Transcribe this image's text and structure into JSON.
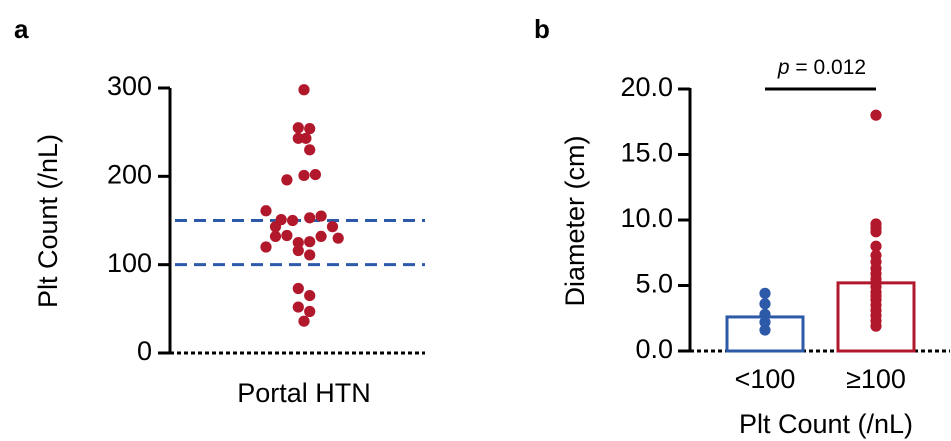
{
  "colors": {
    "red": "#b2182b",
    "blue": "#2d5aa8",
    "axis": "#000000"
  },
  "chart_data": [
    {
      "panel": "a",
      "type": "scatter",
      "xlabel": "Portal HTN",
      "ylabel": "Plt Count (/nL)",
      "ylim": [
        0,
        300
      ],
      "yticks": [
        0,
        100,
        200,
        300
      ],
      "reference_lines": [
        100,
        150
      ],
      "points": [
        {
          "x": 0,
          "y": 298
        },
        {
          "x": -0.6,
          "y": 255
        },
        {
          "x": 0.6,
          "y": 254
        },
        {
          "x": -0.6,
          "y": 243
        },
        {
          "x": 0.2,
          "y": 243
        },
        {
          "x": 0.6,
          "y": 230
        },
        {
          "x": -1.8,
          "y": 196
        },
        {
          "x": 0,
          "y": 201
        },
        {
          "x": 1.2,
          "y": 202
        },
        {
          "x": -4.0,
          "y": 161
        },
        {
          "x": -2.4,
          "y": 151
        },
        {
          "x": -1.2,
          "y": 150
        },
        {
          "x": 0.6,
          "y": 153
        },
        {
          "x": 1.8,
          "y": 155
        },
        {
          "x": -3.0,
          "y": 143
        },
        {
          "x": 3.0,
          "y": 143
        },
        {
          "x": -1.8,
          "y": 133
        },
        {
          "x": 1.8,
          "y": 132
        },
        {
          "x": -3.0,
          "y": 132
        },
        {
          "x": 3.6,
          "y": 130
        },
        {
          "x": -4.0,
          "y": 120
        },
        {
          "x": -0.6,
          "y": 125
        },
        {
          "x": 0.6,
          "y": 126
        },
        {
          "x": -0.6,
          "y": 116
        },
        {
          "x": 0.6,
          "y": 111
        },
        {
          "x": -0.6,
          "y": 73
        },
        {
          "x": 0.6,
          "y": 65
        },
        {
          "x": -0.6,
          "y": 52
        },
        {
          "x": 0.6,
          "y": 47
        },
        {
          "x": 0,
          "y": 36
        }
      ]
    },
    {
      "panel": "b",
      "type": "bar",
      "categories": [
        "<100",
        "≥100"
      ],
      "values": [
        2.6,
        5.2
      ],
      "xlabel": "Plt Count (/nL)",
      "ylabel": "Diameter (cm)",
      "ylim": [
        0,
        20
      ],
      "ytick_labels": [
        "0.0",
        "5.0",
        "10.0",
        "15.0",
        "20.0"
      ],
      "annotation": {
        "prefix": "p",
        "text": " = 0.012"
      },
      "points": [
        {
          "category": 0,
          "values": [
            4.4,
            3.6,
            2.8,
            2.2,
            1.6
          ]
        },
        {
          "category": 1,
          "values": [
            18.0,
            9.7,
            9.4,
            9.1,
            8.0,
            7.3,
            6.8,
            6.3,
            5.9,
            5.5,
            5.2,
            4.9,
            4.5,
            4.2,
            3.9,
            3.5,
            3.1,
            2.7,
            2.3,
            1.9
          ]
        }
      ]
    }
  ]
}
